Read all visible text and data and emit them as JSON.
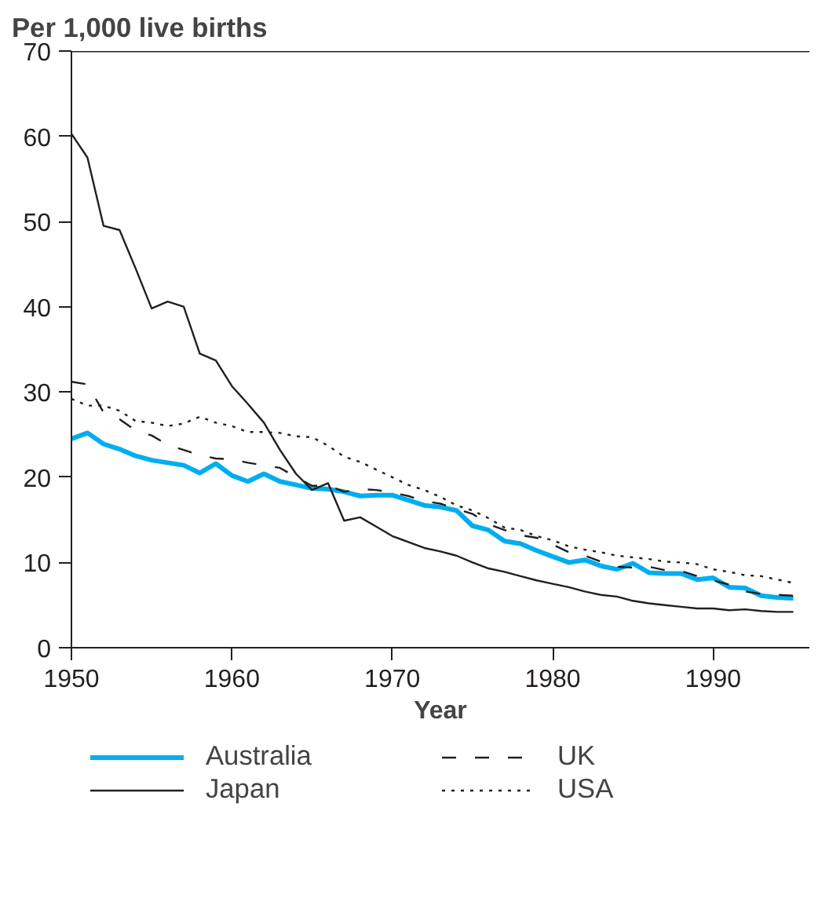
{
  "chart_data": {
    "type": "line",
    "ylabel": "Per 1,000 live births",
    "xlabel": "Year",
    "x": [
      1950,
      1951,
      1952,
      1953,
      1954,
      1955,
      1956,
      1957,
      1958,
      1959,
      1960,
      1961,
      1962,
      1963,
      1964,
      1965,
      1966,
      1967,
      1968,
      1969,
      1970,
      1971,
      1972,
      1973,
      1974,
      1975,
      1976,
      1977,
      1978,
      1979,
      1980,
      1981,
      1982,
      1983,
      1984,
      1985,
      1986,
      1987,
      1988,
      1989,
      1990,
      1991,
      1992,
      1993,
      1994,
      1995
    ],
    "xlim": [
      1950,
      1996
    ],
    "xticks": [
      1950,
      1960,
      1970,
      1980,
      1990
    ],
    "ylim": [
      0,
      70
    ],
    "yticks": [
      0,
      10,
      20,
      30,
      40,
      50,
      60,
      70
    ],
    "grid": false,
    "legend": "bottom",
    "marker": "none",
    "series": [
      {
        "name": "Australia",
        "color": "#00aeef",
        "line_style": "solid",
        "values": [
          24.5,
          25.2,
          23.9,
          23.3,
          22.5,
          22.0,
          21.7,
          21.4,
          20.5,
          21.6,
          20.2,
          19.5,
          20.4,
          19.5,
          19.1,
          18.7,
          18.6,
          18.3,
          17.8,
          17.9,
          17.9,
          17.3,
          16.7,
          16.5,
          16.1,
          14.3,
          13.8,
          12.5,
          12.2,
          11.4,
          10.7,
          10.0,
          10.3,
          9.6,
          9.2,
          9.9,
          8.8,
          8.7,
          8.7,
          8.0,
          8.2,
          7.1,
          7.0,
          6.1,
          5.9,
          5.8
        ]
      },
      {
        "name": "Japan",
        "color": "#231f20",
        "line_style": "solid",
        "values": [
          60.3,
          57.5,
          49.5,
          49.0,
          44.5,
          39.8,
          40.6,
          40.0,
          34.5,
          33.7,
          30.7,
          28.6,
          26.4,
          23.2,
          20.4,
          18.5,
          19.3,
          14.9,
          15.3,
          14.2,
          13.1,
          12.4,
          11.7,
          11.3,
          10.8,
          10.0,
          9.3,
          8.9,
          8.4,
          7.9,
          7.5,
          7.1,
          6.6,
          6.2,
          6.0,
          5.5,
          5.2,
          5.0,
          4.8,
          4.6,
          4.6,
          4.4,
          4.5,
          4.3,
          4.2,
          4.2
        ]
      },
      {
        "name": "UK",
        "color": "#231f20",
        "line_style": "dashed",
        "values": [
          31.2,
          30.9,
          27.6,
          26.8,
          25.5,
          24.9,
          23.8,
          23.2,
          22.6,
          22.2,
          22.1,
          21.7,
          21.4,
          21.1,
          20.0,
          19.0,
          19.0,
          18.3,
          18.6,
          18.5,
          18.2,
          17.8,
          17.2,
          16.9,
          16.3,
          15.7,
          14.5,
          13.8,
          13.2,
          12.9,
          12.1,
          11.2,
          10.8,
          10.1,
          9.5,
          9.4,
          9.5,
          9.1,
          9.0,
          8.4,
          7.9,
          7.4,
          6.6,
          6.3,
          6.2,
          6.1
        ]
      },
      {
        "name": "USA",
        "color": "#231f20",
        "line_style": "dotted",
        "values": [
          29.2,
          28.4,
          28.4,
          27.8,
          26.6,
          26.4,
          26.0,
          26.3,
          27.1,
          26.4,
          26.0,
          25.3,
          25.3,
          25.2,
          24.8,
          24.7,
          23.7,
          22.4,
          21.8,
          20.9,
          20.0,
          19.1,
          18.5,
          17.7,
          16.7,
          16.1,
          15.2,
          14.1,
          13.8,
          13.1,
          12.6,
          11.9,
          11.5,
          11.2,
          10.8,
          10.6,
          10.4,
          10.1,
          10.0,
          9.8,
          9.2,
          8.9,
          8.5,
          8.4,
          8.0,
          7.6
        ]
      }
    ]
  }
}
